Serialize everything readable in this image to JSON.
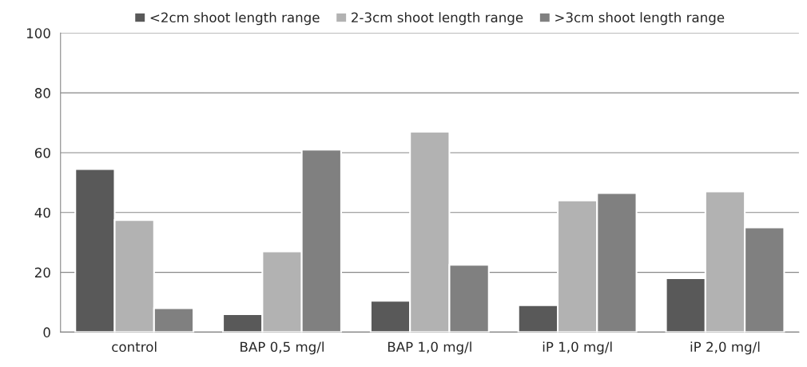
{
  "chart_data": {
    "type": "bar",
    "categories": [
      "control",
      "BAP 0,5 mg/l",
      "BAP 1,0 mg/l",
      "iP 1,0 mg/l",
      "iP 2,0 mg/l"
    ],
    "series": [
      {
        "name": "<2cm shoot length range",
        "color": "#595959",
        "values": [
          54.5,
          6,
          10.5,
          9,
          18
        ]
      },
      {
        "name": "2-3cm shoot length range",
        "color": "#b2b2b2",
        "values": [
          37.5,
          27,
          67,
          44,
          47
        ]
      },
      {
        "name": ">3cm shoot length range",
        "color": "#808080",
        "values": [
          8,
          61,
          22.5,
          46.5,
          35
        ]
      }
    ],
    "ylim": [
      0,
      100
    ],
    "yticks": [
      0,
      20,
      40,
      60,
      80,
      100
    ],
    "grid": "y",
    "legend": "top"
  }
}
